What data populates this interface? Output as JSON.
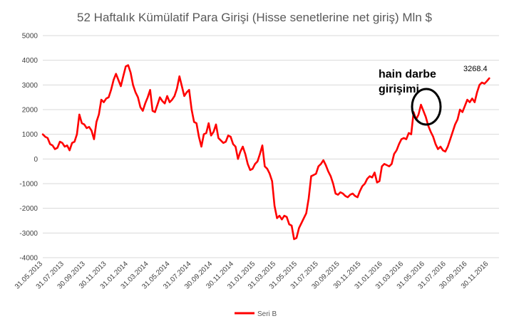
{
  "chart_data": {
    "type": "line",
    "title": "52 Haftalık Kümülatif Para Girişi (Hisse senetlerine net giriş) Mln $",
    "xlabel": "",
    "ylabel": "",
    "ylim": [
      -4000,
      5000
    ],
    "yticks": [
      "5000",
      "4000",
      "3000",
      "2000",
      "1000",
      "0",
      "-1000",
      "-2000",
      "-3000",
      "-4000"
    ],
    "xlim": [
      "2013-05-31",
      "2016-12-30"
    ],
    "xticks": [
      "31.05.2013",
      "31.07.2013",
      "30.09.2013",
      "30.11.2013",
      "31.01.2014",
      "31.03.2014",
      "31.05.2014",
      "31.07.2014",
      "30.09.2014",
      "30.11.2014",
      "31.01.2015",
      "31.03.2015",
      "31.05.2015",
      "31.07.2015",
      "30.09.2015",
      "30.11.2015",
      "31.01.2016",
      "31.03.2016",
      "31.05.2016",
      "31.07.2016",
      "30.09.2016",
      "30.11.2016"
    ],
    "grid": true,
    "legend": "bottom",
    "color": "#ff0000",
    "series": [
      {
        "name": "Seri B",
        "points": [
          [
            "2013-05-31",
            1000
          ],
          [
            "2013-06-07",
            900
          ],
          [
            "2013-06-14",
            850
          ],
          [
            "2013-06-21",
            600
          ],
          [
            "2013-06-28",
            550
          ],
          [
            "2013-07-05",
            400
          ],
          [
            "2013-07-12",
            450
          ],
          [
            "2013-07-19",
            700
          ],
          [
            "2013-07-26",
            650
          ],
          [
            "2013-08-02",
            500
          ],
          [
            "2013-08-09",
            550
          ],
          [
            "2013-08-16",
            350
          ],
          [
            "2013-08-23",
            650
          ],
          [
            "2013-08-30",
            700
          ],
          [
            "2013-09-06",
            1000
          ],
          [
            "2013-09-13",
            1800
          ],
          [
            "2013-09-20",
            1450
          ],
          [
            "2013-09-27",
            1400
          ],
          [
            "2013-10-04",
            1250
          ],
          [
            "2013-10-11",
            1300
          ],
          [
            "2013-10-18",
            1150
          ],
          [
            "2013-10-25",
            800
          ],
          [
            "2013-11-01",
            1500
          ],
          [
            "2013-11-08",
            1800
          ],
          [
            "2013-11-15",
            2400
          ],
          [
            "2013-11-22",
            2300
          ],
          [
            "2013-11-29",
            2450
          ],
          [
            "2013-12-06",
            2500
          ],
          [
            "2013-12-13",
            2800
          ],
          [
            "2013-12-20",
            3200
          ],
          [
            "2013-12-27",
            3450
          ],
          [
            "2014-01-03",
            3200
          ],
          [
            "2014-01-10",
            2950
          ],
          [
            "2014-01-17",
            3350
          ],
          [
            "2014-01-24",
            3750
          ],
          [
            "2014-01-31",
            3800
          ],
          [
            "2014-02-07",
            3500
          ],
          [
            "2014-02-14",
            3000
          ],
          [
            "2014-02-21",
            2700
          ],
          [
            "2014-02-28",
            2500
          ],
          [
            "2014-03-07",
            2100
          ],
          [
            "2014-03-14",
            1950
          ],
          [
            "2014-03-21",
            2250
          ],
          [
            "2014-03-28",
            2500
          ],
          [
            "2014-04-04",
            2800
          ],
          [
            "2014-04-11",
            1950
          ],
          [
            "2014-04-18",
            1900
          ],
          [
            "2014-04-25",
            2200
          ],
          [
            "2014-05-02",
            2500
          ],
          [
            "2014-05-09",
            2350
          ],
          [
            "2014-05-16",
            2250
          ],
          [
            "2014-05-23",
            2550
          ],
          [
            "2014-05-30",
            2300
          ],
          [
            "2014-06-06",
            2400
          ],
          [
            "2014-06-13",
            2550
          ],
          [
            "2014-06-20",
            2850
          ],
          [
            "2014-06-27",
            3350
          ],
          [
            "2014-07-04",
            2950
          ],
          [
            "2014-07-11",
            2550
          ],
          [
            "2014-07-18",
            2700
          ],
          [
            "2014-07-25",
            2800
          ],
          [
            "2014-08-01",
            2000
          ],
          [
            "2014-08-08",
            1500
          ],
          [
            "2014-08-15",
            1450
          ],
          [
            "2014-08-22",
            900
          ],
          [
            "2014-08-29",
            500
          ],
          [
            "2014-09-05",
            1000
          ],
          [
            "2014-09-12",
            1050
          ],
          [
            "2014-09-19",
            1450
          ],
          [
            "2014-09-26",
            950
          ],
          [
            "2014-10-03",
            1100
          ],
          [
            "2014-10-10",
            1400
          ],
          [
            "2014-10-17",
            850
          ],
          [
            "2014-10-24",
            750
          ],
          [
            "2014-10-31",
            650
          ],
          [
            "2014-11-07",
            700
          ],
          [
            "2014-11-14",
            950
          ],
          [
            "2014-11-21",
            900
          ],
          [
            "2014-11-28",
            600
          ],
          [
            "2014-12-05",
            500
          ],
          [
            "2014-12-12",
            0
          ],
          [
            "2014-12-19",
            300
          ],
          [
            "2014-12-26",
            500
          ],
          [
            "2015-01-02",
            200
          ],
          [
            "2015-01-09",
            -200
          ],
          [
            "2015-01-16",
            -450
          ],
          [
            "2015-01-23",
            -400
          ],
          [
            "2015-01-30",
            -200
          ],
          [
            "2015-02-06",
            -100
          ],
          [
            "2015-02-13",
            200
          ],
          [
            "2015-02-20",
            550
          ],
          [
            "2015-02-27",
            -300
          ],
          [
            "2015-03-06",
            -400
          ],
          [
            "2015-03-13",
            -600
          ],
          [
            "2015-03-20",
            -900
          ],
          [
            "2015-03-27",
            -1900
          ],
          [
            "2015-04-03",
            -2400
          ],
          [
            "2015-04-10",
            -2300
          ],
          [
            "2015-04-17",
            -2450
          ],
          [
            "2015-04-24",
            -2300
          ],
          [
            "2015-05-01",
            -2350
          ],
          [
            "2015-05-08",
            -2650
          ],
          [
            "2015-05-15",
            -2700
          ],
          [
            "2015-05-22",
            -3250
          ],
          [
            "2015-05-29",
            -3200
          ],
          [
            "2015-06-05",
            -2800
          ],
          [
            "2015-06-12",
            -2600
          ],
          [
            "2015-06-19",
            -2400
          ],
          [
            "2015-06-26",
            -2200
          ],
          [
            "2015-07-03",
            -1600
          ],
          [
            "2015-07-10",
            -700
          ],
          [
            "2015-07-17",
            -650
          ],
          [
            "2015-07-24",
            -600
          ],
          [
            "2015-07-31",
            -300
          ],
          [
            "2015-08-07",
            -200
          ],
          [
            "2015-08-14",
            -50
          ],
          [
            "2015-08-21",
            -250
          ],
          [
            "2015-08-28",
            -500
          ],
          [
            "2015-09-04",
            -700
          ],
          [
            "2015-09-11",
            -1000
          ],
          [
            "2015-09-18",
            -1400
          ],
          [
            "2015-09-25",
            -1450
          ],
          [
            "2015-10-02",
            -1350
          ],
          [
            "2015-10-09",
            -1400
          ],
          [
            "2015-10-16",
            -1500
          ],
          [
            "2015-10-23",
            -1550
          ],
          [
            "2015-10-30",
            -1450
          ],
          [
            "2015-11-06",
            -1400
          ],
          [
            "2015-11-13",
            -1500
          ],
          [
            "2015-11-20",
            -1550
          ],
          [
            "2015-11-27",
            -1300
          ],
          [
            "2015-12-04",
            -1100
          ],
          [
            "2015-12-11",
            -1000
          ],
          [
            "2015-12-18",
            -800
          ],
          [
            "2015-12-25",
            -700
          ],
          [
            "2016-01-01",
            -750
          ],
          [
            "2016-01-08",
            -550
          ],
          [
            "2016-01-15",
            -950
          ],
          [
            "2016-01-22",
            -900
          ],
          [
            "2016-01-29",
            -300
          ],
          [
            "2016-02-05",
            -200
          ],
          [
            "2016-02-12",
            -250
          ],
          [
            "2016-02-19",
            -300
          ],
          [
            "2016-02-26",
            -200
          ],
          [
            "2016-03-04",
            200
          ],
          [
            "2016-03-11",
            350
          ],
          [
            "2016-03-18",
            600
          ],
          [
            "2016-03-25",
            800
          ],
          [
            "2016-04-01",
            850
          ],
          [
            "2016-04-08",
            800
          ],
          [
            "2016-04-15",
            1050
          ],
          [
            "2016-04-22",
            1000
          ],
          [
            "2016-04-29",
            1900
          ],
          [
            "2016-05-06",
            1600
          ],
          [
            "2016-05-13",
            1800
          ],
          [
            "2016-05-20",
            2200
          ],
          [
            "2016-05-27",
            1950
          ],
          [
            "2016-06-03",
            1700
          ],
          [
            "2016-06-10",
            1350
          ],
          [
            "2016-06-17",
            1100
          ],
          [
            "2016-06-24",
            900
          ],
          [
            "2016-07-01",
            600
          ],
          [
            "2016-07-08",
            400
          ],
          [
            "2016-07-15",
            500
          ],
          [
            "2016-07-22",
            350
          ],
          [
            "2016-07-29",
            300
          ],
          [
            "2016-08-05",
            500
          ],
          [
            "2016-08-12",
            800
          ],
          [
            "2016-08-19",
            1100
          ],
          [
            "2016-08-26",
            1400
          ],
          [
            "2016-09-02",
            1600
          ],
          [
            "2016-09-09",
            2000
          ],
          [
            "2016-09-16",
            1900
          ],
          [
            "2016-09-23",
            2150
          ],
          [
            "2016-09-30",
            2400
          ],
          [
            "2016-10-07",
            2300
          ],
          [
            "2016-10-14",
            2450
          ],
          [
            "2016-10-21",
            2300
          ],
          [
            "2016-10-28",
            2700
          ],
          [
            "2016-11-04",
            3000
          ],
          [
            "2016-11-11",
            3100
          ],
          [
            "2016-11-18",
            3050
          ],
          [
            "2016-11-25",
            3150
          ],
          [
            "2016-12-02",
            3268.4
          ]
        ]
      }
    ],
    "annotations": [
      {
        "text_line1": "hain darbe",
        "text_line2": "girişimi",
        "x": "2016-05-20",
        "y": 2200
      },
      {
        "text": "3268.4",
        "x": "2016-12-02",
        "y": 3268.4
      }
    ]
  }
}
